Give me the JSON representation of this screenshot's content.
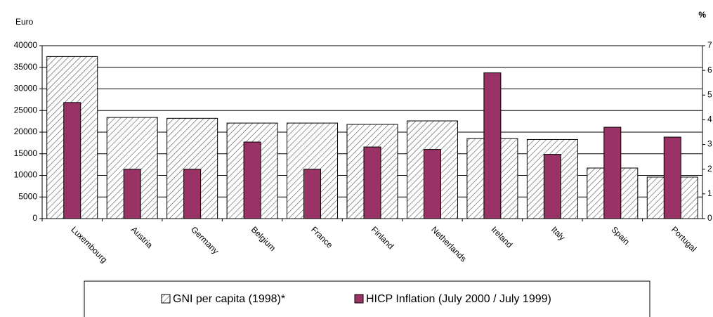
{
  "chart_data": {
    "type": "bar",
    "y_label": "Euro",
    "y2_label": "%",
    "categories": [
      "Luxembourg",
      "Austria",
      "Germany",
      "Belgium",
      "France",
      "Finland",
      "Netherlands",
      "Ireland",
      "Italy",
      "Spain",
      "Portugal"
    ],
    "series": [
      {
        "name": "GNI per capita (1998)*",
        "color": "#d9d9d9",
        "values": [
          37500,
          23400,
          23200,
          22100,
          22100,
          21800,
          22600,
          18500,
          18300,
          11700,
          9600
        ]
      },
      {
        "name": "HICP Inflation (July 2000 / July 1999)",
        "color": "#993366",
        "axis": "y2",
        "values": [
          4.7,
          2.0,
          2.0,
          3.1,
          2.0,
          2.9,
          2.8,
          5.9,
          2.6,
          3.7,
          3.3
        ]
      }
    ],
    "ylim": [
      0,
      40000
    ],
    "yticks": [
      0,
      5000,
      10000,
      15000,
      20000,
      25000,
      30000,
      35000,
      40000
    ],
    "y2lim": [
      0,
      7
    ],
    "y2ticks": [
      0,
      1,
      2,
      3,
      4,
      5,
      6,
      7
    ],
    "grid": true
  }
}
